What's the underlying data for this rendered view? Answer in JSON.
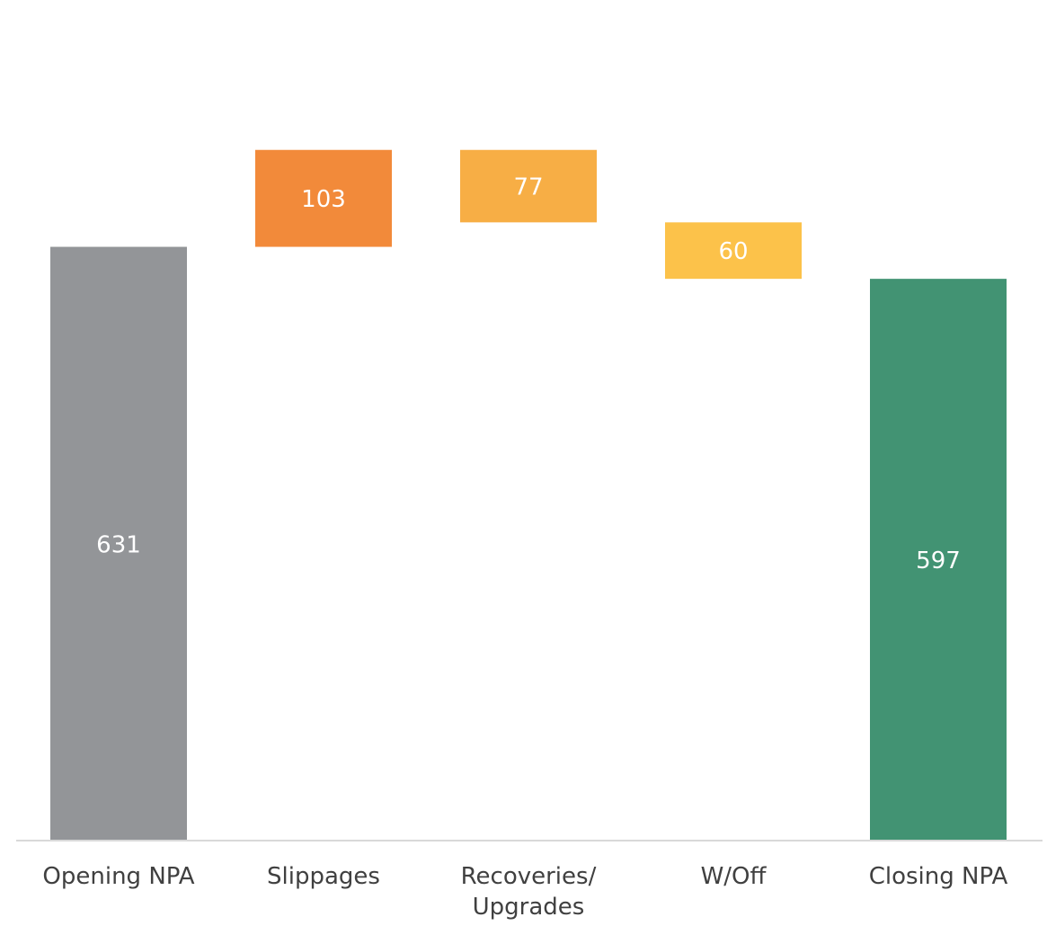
{
  "chart_data": {
    "type": "waterfall",
    "categories": [
      "Opening NPA",
      "Slippages",
      "Recoveries/ Upgrades",
      "W/Off",
      "Closing NPA"
    ],
    "values": [
      631,
      103,
      77,
      60,
      597
    ],
    "measures": [
      "total",
      "increase",
      "decrease",
      "decrease",
      "total"
    ],
    "colors": [
      "#939598",
      "#f28a3a",
      "#f7ae45",
      "#fcc24a",
      "#429373"
    ],
    "ylim": [
      0,
      750
    ]
  }
}
